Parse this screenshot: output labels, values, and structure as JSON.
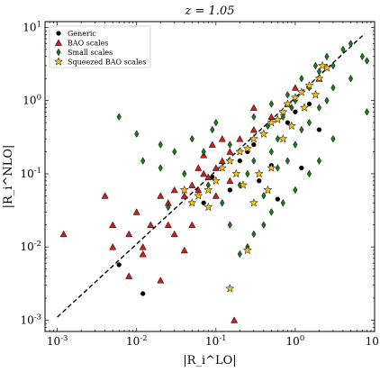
{
  "chart_data": {
    "type": "scatter",
    "title": "z = 1.05",
    "xlabel": "|R_i^LO|",
    "ylabel": "|R_i^NLO|",
    "xscale": "log",
    "yscale": "log",
    "xlim": [
      0.0007,
      10
    ],
    "ylim": [
      0.0007,
      12
    ],
    "x_ticks": [
      0.001,
      0.01,
      0.1,
      1,
      10
    ],
    "y_ticks": [
      0.001,
      0.01,
      0.1,
      1,
      10
    ],
    "x_tick_labels": [
      [
        "10",
        "-3"
      ],
      [
        "10",
        "-2"
      ],
      [
        "10",
        "-1"
      ],
      [
        "10",
        "0"
      ],
      [
        "10",
        "1"
      ]
    ],
    "y_tick_labels": [
      [
        "10",
        "-3"
      ],
      [
        "10",
        "-2"
      ],
      [
        "10",
        "-1"
      ],
      [
        "10",
        "0"
      ],
      [
        "10",
        "1"
      ]
    ],
    "grid": false,
    "legend_position": "top-left",
    "reference_line": {
      "style": "dashed",
      "color": "#000000",
      "x": [
        0.001,
        7.5
      ],
      "y": [
        0.0011,
        8.2
      ]
    },
    "series": [
      {
        "name": "Generic",
        "marker": "circle",
        "color": "#000000",
        "points": [
          [
            0.006,
            0.0057
          ],
          [
            0.012,
            0.0023
          ],
          [
            0.07,
            0.04
          ],
          [
            0.09,
            0.09
          ],
          [
            0.15,
            0.06
          ],
          [
            0.2,
            0.15
          ],
          [
            0.25,
            0.2
          ],
          [
            0.35,
            0.08
          ],
          [
            0.5,
            0.13
          ],
          [
            0.8,
            0.5
          ],
          [
            1.2,
            0.12
          ],
          [
            1.5,
            0.9
          ],
          [
            2.0,
            0.4
          ],
          [
            0.6,
            0.045
          ],
          [
            0.3,
            0.25
          ],
          [
            1.0,
            0.7
          ]
        ]
      },
      {
        "name": "BAO scales",
        "marker": "triangle",
        "color": "#cc1f1f",
        "points": [
          [
            0.0012,
            0.015
          ],
          [
            0.004,
            0.05
          ],
          [
            0.005,
            0.02
          ],
          [
            0.008,
            0.015
          ],
          [
            0.01,
            0.03
          ],
          [
            0.012,
            0.01
          ],
          [
            0.015,
            0.02
          ],
          [
            0.02,
            0.0035
          ],
          [
            0.02,
            0.05
          ],
          [
            0.025,
            0.04
          ],
          [
            0.03,
            0.015
          ],
          [
            0.03,
            0.06
          ],
          [
            0.04,
            0.05
          ],
          [
            0.05,
            0.07
          ],
          [
            0.06,
            0.06
          ],
          [
            0.07,
            0.1
          ],
          [
            0.08,
            0.09
          ],
          [
            0.1,
            0.12
          ],
          [
            0.12,
            0.15
          ],
          [
            0.15,
            0.2
          ],
          [
            0.2,
            0.3
          ],
          [
            0.3,
            0.4
          ],
          [
            0.5,
            0.6
          ],
          [
            0.8,
            0.9
          ],
          [
            0.05,
            0.02
          ],
          [
            0.1,
            0.05
          ],
          [
            0.15,
            0.08
          ],
          [
            0.17,
            0.001
          ],
          [
            0.04,
            0.009
          ],
          [
            0.06,
            0.12
          ],
          [
            0.07,
            0.18
          ],
          [
            0.09,
            0.25
          ],
          [
            0.12,
            0.3
          ],
          [
            0.3,
            0.8
          ],
          [
            1.0,
            1.5
          ],
          [
            2.0,
            2.0
          ],
          [
            0.025,
            0.02
          ],
          [
            0.012,
            0.008
          ],
          [
            0.005,
            0.01
          ],
          [
            0.008,
            0.004
          ]
        ]
      },
      {
        "name": "Small scales",
        "marker": "diamond",
        "color": "#1f7a1f",
        "points": [
          [
            0.006,
            0.6
          ],
          [
            0.01,
            0.35
          ],
          [
            0.012,
            0.15
          ],
          [
            0.02,
            0.12
          ],
          [
            0.03,
            0.2
          ],
          [
            0.05,
            0.3
          ],
          [
            0.1,
            0.5
          ],
          [
            0.15,
            0.25
          ],
          [
            0.2,
            0.07
          ],
          [
            0.25,
            0.1
          ],
          [
            0.3,
            0.15
          ],
          [
            0.4,
            0.05
          ],
          [
            0.5,
            0.2
          ],
          [
            0.6,
            0.3
          ],
          [
            0.7,
            0.6
          ],
          [
            0.8,
            0.15
          ],
          [
            0.9,
            0.8
          ],
          [
            1.0,
            1.0
          ],
          [
            1.2,
            0.4
          ],
          [
            1.5,
            1.5
          ],
          [
            2.0,
            2.5
          ],
          [
            2.5,
            1.0
          ],
          [
            3.0,
            3.0
          ],
          [
            4.0,
            5.0
          ],
          [
            5.0,
            2.0
          ],
          [
            7.0,
            4.0
          ],
          [
            8.0,
            0.7
          ],
          [
            8.0,
            3.5
          ],
          [
            3.0,
            0.3
          ],
          [
            2.0,
            0.15
          ],
          [
            1.5,
            0.1
          ],
          [
            1.0,
            0.06
          ],
          [
            0.7,
            0.04
          ],
          [
            0.5,
            0.03
          ],
          [
            0.4,
            0.02
          ],
          [
            0.3,
            0.015
          ],
          [
            0.25,
            0.01
          ],
          [
            0.2,
            0.008
          ],
          [
            0.15,
            0.02
          ],
          [
            0.12,
            0.04
          ],
          [
            0.08,
            0.07
          ],
          [
            0.07,
            0.2
          ],
          [
            0.09,
            0.4
          ],
          [
            0.04,
            0.1
          ],
          [
            0.02,
            0.25
          ],
          [
            0.025,
            0.035
          ],
          [
            0.3,
            0.6
          ],
          [
            0.5,
            0.9
          ],
          [
            0.8,
            1.2
          ],
          [
            1.2,
            2.0
          ],
          [
            1.8,
            3.0
          ],
          [
            2.5,
            4.0
          ],
          [
            5.0,
            6.0
          ],
          [
            1.0,
            0.25
          ],
          [
            1.5,
            0.5
          ],
          [
            2.0,
            0.8
          ],
          [
            3.0,
            1.5
          ],
          [
            0.6,
            0.12
          ],
          [
            0.45,
            0.45
          ]
        ]
      },
      {
        "name": "Squeezed BAO scales",
        "marker": "star",
        "color": "#f2c21b",
        "points": [
          [
            0.3,
            0.04
          ],
          [
            0.25,
            0.009
          ],
          [
            0.15,
            0.0027
          ],
          [
            0.08,
            0.035
          ],
          [
            0.1,
            0.08
          ],
          [
            0.12,
            0.12
          ],
          [
            0.15,
            0.15
          ],
          [
            0.2,
            0.2
          ],
          [
            0.25,
            0.22
          ],
          [
            0.3,
            0.3
          ],
          [
            0.4,
            0.35
          ],
          [
            0.5,
            0.5
          ],
          [
            0.6,
            0.55
          ],
          [
            0.7,
            0.7
          ],
          [
            0.8,
            0.9
          ],
          [
            1.0,
            1.1
          ],
          [
            1.2,
            1.3
          ],
          [
            1.5,
            1.6
          ],
          [
            2.0,
            2.0
          ],
          [
            2.5,
            2.8
          ],
          [
            0.06,
            0.05
          ],
          [
            0.05,
            0.04
          ],
          [
            0.04,
            0.06
          ],
          [
            0.35,
            0.1
          ],
          [
            0.5,
            0.12
          ],
          [
            0.7,
            0.3
          ],
          [
            0.9,
            0.45
          ],
          [
            1.3,
            0.8
          ],
          [
            1.8,
            1.2
          ],
          [
            0.22,
            0.07
          ],
          [
            0.18,
            0.1
          ],
          [
            0.08,
            0.06
          ],
          [
            2.2,
            3.0
          ],
          [
            0.45,
            0.06
          ]
        ]
      }
    ]
  }
}
